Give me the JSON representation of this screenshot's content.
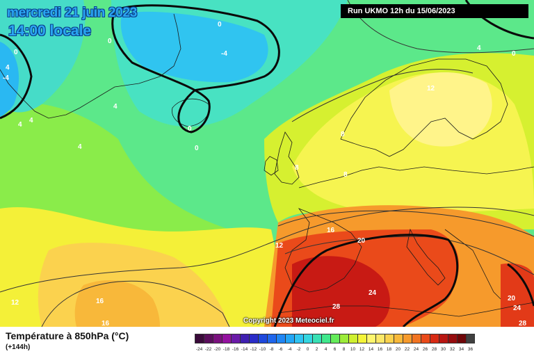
{
  "header": {
    "date": "mercredi 21 juin 2023",
    "local_time": "14:00 locale",
    "run": "Run UKMO 12h du 15/06/2023"
  },
  "legend": {
    "parameter": "Température à 850hPa (°C)",
    "lead_time": "(+144h)",
    "scale_values": [
      "-24",
      "-22",
      "-20",
      "-18",
      "-16",
      "-14",
      "-12",
      "-10",
      "-8",
      "-6",
      "-4",
      "-2",
      "0",
      "2",
      "4",
      "6",
      "8",
      "10",
      "12",
      "14",
      "16",
      "18",
      "20",
      "22",
      "24",
      "26",
      "28",
      "30",
      "32",
      "34",
      "36"
    ],
    "scale_colors": [
      "#3a0a3a",
      "#5a0e5c",
      "#7a117e",
      "#9412a0",
      "#6a1aa8",
      "#3f20b0",
      "#2a2cc8",
      "#1e48dc",
      "#1f66ec",
      "#1f86f4",
      "#22a6f6",
      "#2ec4f2",
      "#34d6e0",
      "#38e0b4",
      "#40e88c",
      "#64ec5a",
      "#9cec3a",
      "#cff030",
      "#f4f438",
      "#fff66e",
      "#fce868",
      "#fbd24e",
      "#f8b83a",
      "#f69a2c",
      "#f27422",
      "#ea4a1a",
      "#d82a14",
      "#b81612",
      "#960c0e",
      "#6e0608",
      "#404040"
    ]
  },
  "map": {
    "contour_labels": [
      "0",
      "0",
      "0",
      "4",
      "-4",
      "-4",
      "0",
      "0",
      "4",
      "0",
      "4",
      "4",
      "4",
      "4",
      "12",
      "8",
      "8",
      "8",
      "16",
      "12",
      "20",
      "24",
      "28",
      "12",
      "16",
      "16",
      "20",
      "24",
      "28"
    ]
  },
  "copyright": "Copyright 2023 Meteociel.fr"
}
